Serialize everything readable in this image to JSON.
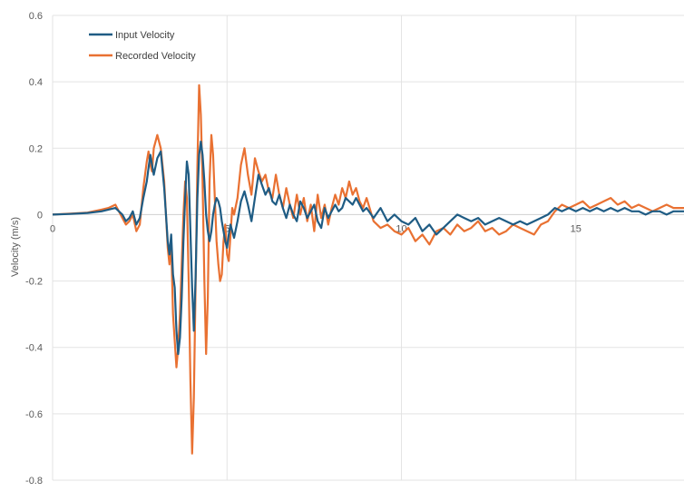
{
  "chart_data": {
    "type": "line",
    "title": "",
    "xlabel": "",
    "ylabel": "Velocity (m/s)",
    "xlim": [
      0,
      18.1
    ],
    "ylim": [
      -0.8,
      0.6
    ],
    "x_ticks": [
      0,
      5,
      10,
      15
    ],
    "y_ticks": [
      -0.8,
      -0.6,
      -0.4,
      -0.2,
      0,
      0.2,
      0.4,
      0.6
    ],
    "y_tick_labels": [
      "-0.8",
      "-0.6",
      "-0.4",
      "-0.2",
      "0",
      "0.2",
      "0.4",
      "0.6"
    ],
    "x_tick_labels": [
      "0",
      "5",
      "10",
      "15"
    ],
    "grid": true,
    "legend_position": "top-left",
    "series": [
      {
        "name": "Input Velocity",
        "color": "#1F5C84",
        "x": [
          0,
          0.5,
          1.0,
          1.4,
          1.6,
          1.8,
          2.0,
          2.1,
          2.2,
          2.3,
          2.4,
          2.5,
          2.6,
          2.7,
          2.75,
          2.8,
          2.85,
          2.9,
          3.0,
          3.1,
          3.2,
          3.3,
          3.35,
          3.4,
          3.45,
          3.5,
          3.55,
          3.6,
          3.65,
          3.7,
          3.75,
          3.8,
          3.85,
          3.9,
          3.95,
          4.0,
          4.05,
          4.1,
          4.15,
          4.2,
          4.25,
          4.3,
          4.35,
          4.4,
          4.45,
          4.5,
          4.55,
          4.6,
          4.65,
          4.7,
          4.75,
          4.8,
          4.85,
          4.9,
          4.95,
          5.0,
          5.05,
          5.1,
          5.15,
          5.2,
          5.3,
          5.4,
          5.5,
          5.6,
          5.7,
          5.8,
          5.9,
          6.0,
          6.1,
          6.2,
          6.3,
          6.4,
          6.5,
          6.6,
          6.7,
          6.8,
          6.9,
          7.0,
          7.1,
          7.2,
          7.3,
          7.4,
          7.5,
          7.6,
          7.7,
          7.8,
          7.9,
          8.0,
          8.1,
          8.2,
          8.3,
          8.4,
          8.5,
          8.6,
          8.7,
          8.8,
          8.9,
          9.0,
          9.2,
          9.4,
          9.6,
          9.8,
          10.0,
          10.2,
          10.4,
          10.6,
          10.8,
          11.0,
          11.2,
          11.4,
          11.6,
          11.8,
          12.0,
          12.2,
          12.4,
          12.6,
          12.8,
          13.0,
          13.2,
          13.4,
          13.6,
          13.8,
          14.0,
          14.2,
          14.4,
          14.6,
          14.8,
          15.0,
          15.2,
          15.4,
          15.6,
          15.8,
          16.0,
          16.2,
          16.4,
          16.6,
          16.8,
          17.0,
          17.2,
          17.4,
          17.6,
          17.8,
          18.1
        ],
        "y": [
          0,
          0.002,
          0.005,
          0.01,
          0.015,
          0.02,
          0.0,
          -0.02,
          -0.01,
          0.01,
          -0.03,
          -0.01,
          0.05,
          0.1,
          0.14,
          0.18,
          0.15,
          0.12,
          0.17,
          0.19,
          0.08,
          -0.08,
          -0.12,
          -0.06,
          -0.18,
          -0.22,
          -0.35,
          -0.42,
          -0.37,
          -0.25,
          -0.08,
          0.05,
          0.16,
          0.12,
          -0.05,
          -0.22,
          -0.35,
          -0.18,
          0.05,
          0.18,
          0.22,
          0.18,
          0.1,
          0.0,
          -0.05,
          -0.08,
          -0.05,
          0.0,
          0.03,
          0.05,
          0.04,
          0.02,
          -0.02,
          -0.05,
          -0.08,
          -0.1,
          -0.06,
          -0.03,
          -0.05,
          -0.07,
          -0.02,
          0.04,
          0.07,
          0.03,
          -0.02,
          0.05,
          0.12,
          0.09,
          0.06,
          0.08,
          0.04,
          0.03,
          0.06,
          0.02,
          -0.01,
          0.03,
          0.0,
          -0.02,
          0.04,
          0.02,
          -0.01,
          0.01,
          0.03,
          -0.02,
          -0.04,
          0.02,
          -0.01,
          0.01,
          0.03,
          0.01,
          0.02,
          0.05,
          0.04,
          0.03,
          0.05,
          0.03,
          0.01,
          0.02,
          -0.01,
          0.02,
          -0.02,
          0.0,
          -0.02,
          -0.03,
          -0.01,
          -0.05,
          -0.03,
          -0.06,
          -0.04,
          -0.02,
          0.0,
          -0.01,
          -0.02,
          -0.01,
          -0.03,
          -0.02,
          -0.01,
          -0.02,
          -0.03,
          -0.02,
          -0.03,
          -0.02,
          -0.01,
          0.0,
          0.02,
          0.01,
          0.02,
          0.01,
          0.02,
          0.01,
          0.02,
          0.01,
          0.02,
          0.01,
          0.02,
          0.01,
          0.01,
          0.0,
          0.01,
          0.01,
          0.0,
          0.01,
          0.01
        ]
      },
      {
        "name": "Recorded Velocity",
        "color": "#E97132",
        "x": [
          0,
          0.5,
          1.0,
          1.4,
          1.6,
          1.8,
          2.0,
          2.1,
          2.2,
          2.3,
          2.4,
          2.5,
          2.6,
          2.7,
          2.75,
          2.8,
          2.85,
          2.9,
          3.0,
          3.1,
          3.2,
          3.3,
          3.35,
          3.4,
          3.45,
          3.5,
          3.55,
          3.6,
          3.65,
          3.7,
          3.75,
          3.8,
          3.85,
          3.9,
          3.95,
          4.0,
          4.05,
          4.1,
          4.15,
          4.2,
          4.25,
          4.3,
          4.35,
          4.4,
          4.45,
          4.5,
          4.55,
          4.6,
          4.65,
          4.7,
          4.75,
          4.8,
          4.85,
          4.9,
          4.95,
          5.0,
          5.05,
          5.1,
          5.15,
          5.2,
          5.3,
          5.4,
          5.5,
          5.6,
          5.7,
          5.8,
          5.9,
          6.0,
          6.1,
          6.2,
          6.3,
          6.4,
          6.5,
          6.6,
          6.7,
          6.8,
          6.9,
          7.0,
          7.1,
          7.2,
          7.3,
          7.4,
          7.5,
          7.6,
          7.7,
          7.8,
          7.9,
          8.0,
          8.1,
          8.2,
          8.3,
          8.4,
          8.5,
          8.6,
          8.7,
          8.8,
          8.9,
          9.0,
          9.2,
          9.4,
          9.6,
          9.8,
          10.0,
          10.2,
          10.4,
          10.6,
          10.8,
          11.0,
          11.2,
          11.4,
          11.6,
          11.8,
          12.0,
          12.2,
          12.4,
          12.6,
          12.8,
          13.0,
          13.2,
          13.4,
          13.6,
          13.8,
          14.0,
          14.2,
          14.4,
          14.6,
          14.8,
          15.0,
          15.2,
          15.4,
          15.6,
          15.8,
          16.0,
          16.2,
          16.4,
          16.6,
          16.8,
          17.0,
          17.2,
          17.4,
          17.6,
          17.8,
          18.1
        ],
        "y": [
          0,
          0.003,
          0.006,
          0.015,
          0.02,
          0.03,
          -0.01,
          -0.03,
          -0.02,
          0.0,
          -0.05,
          -0.03,
          0.08,
          0.16,
          0.19,
          0.15,
          0.13,
          0.2,
          0.24,
          0.2,
          0.1,
          -0.1,
          -0.15,
          -0.08,
          -0.3,
          -0.38,
          -0.46,
          -0.4,
          -0.3,
          -0.15,
          0.0,
          0.1,
          0.05,
          -0.2,
          -0.5,
          -0.72,
          -0.55,
          -0.2,
          0.15,
          0.39,
          0.3,
          0.1,
          -0.2,
          -0.42,
          -0.25,
          0.1,
          0.24,
          0.18,
          0.05,
          -0.08,
          -0.15,
          -0.2,
          -0.18,
          -0.08,
          -0.03,
          -0.12,
          -0.14,
          -0.06,
          0.02,
          0.0,
          0.05,
          0.15,
          0.2,
          0.12,
          0.06,
          0.17,
          0.13,
          0.1,
          0.12,
          0.07,
          0.05,
          0.12,
          0.06,
          0.02,
          0.08,
          0.03,
          -0.01,
          0.06,
          0.0,
          0.05,
          -0.02,
          0.03,
          -0.05,
          0.06,
          -0.01,
          0.03,
          -0.03,
          0.02,
          0.06,
          0.03,
          0.08,
          0.05,
          0.1,
          0.06,
          0.08,
          0.04,
          0.02,
          0.05,
          -0.02,
          -0.04,
          -0.03,
          -0.05,
          -0.06,
          -0.04,
          -0.08,
          -0.06,
          -0.09,
          -0.05,
          -0.04,
          -0.06,
          -0.03,
          -0.05,
          -0.04,
          -0.02,
          -0.05,
          -0.04,
          -0.06,
          -0.05,
          -0.03,
          -0.04,
          -0.05,
          -0.06,
          -0.03,
          -0.02,
          0.01,
          0.03,
          0.02,
          0.03,
          0.04,
          0.02,
          0.03,
          0.04,
          0.05,
          0.03,
          0.04,
          0.02,
          0.03,
          0.02,
          0.01,
          0.02,
          0.03,
          0.02,
          0.02
        ]
      }
    ]
  }
}
